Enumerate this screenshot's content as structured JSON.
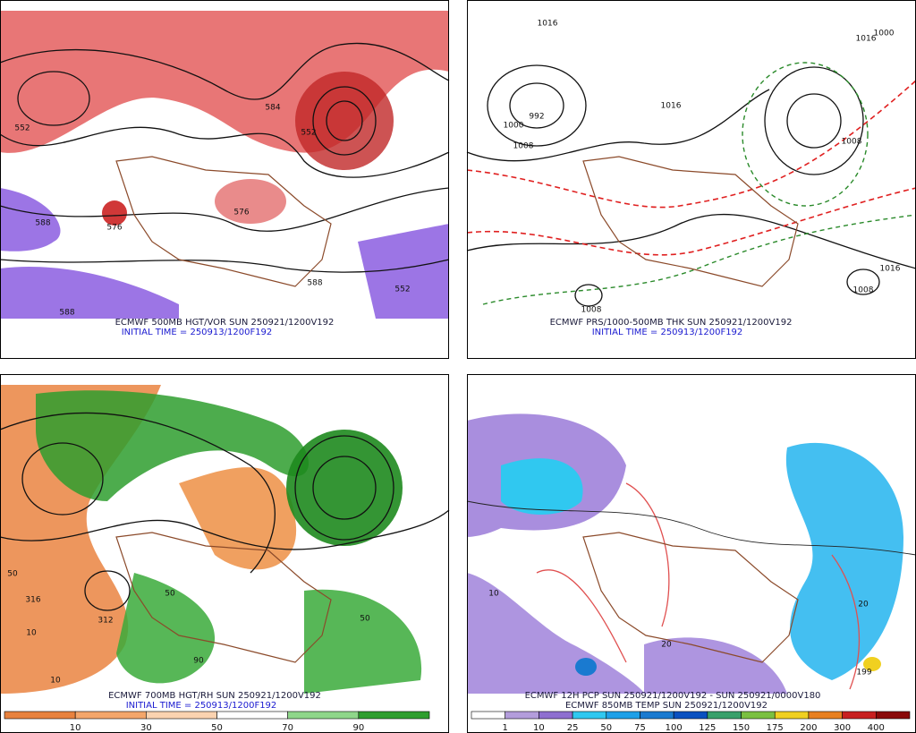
{
  "panels": [
    {
      "caption_lines": [
        "ECMWF 500MB HGT/VOR SUN 250921/1200V192",
        "INITIAL TIME = 250913/1200F192"
      ],
      "contour_labels": [
        "552",
        "584",
        "552",
        "576",
        "576",
        "588",
        "588",
        "588",
        "552"
      ]
    },
    {
      "caption_lines": [
        "ECMWF PRS/1000-500MB THK SUN 250921/1200V192",
        "INITIAL TIME = 250913/1200F192"
      ],
      "contour_labels": [
        "1016",
        "992",
        "1000",
        "1008",
        "1016",
        "1016",
        "1008",
        "1008",
        "1016",
        "1008",
        "1000"
      ]
    },
    {
      "caption_lines": [
        "ECMWF 700MB HGT/RH SUN 250921/1200V192",
        "INITIAL TIME = 250913/1200F192"
      ],
      "contour_labels": [
        "316",
        "312",
        "50",
        "10",
        "50",
        "90",
        "10",
        "50"
      ],
      "colorbar": {
        "labels": [
          10,
          30,
          50,
          70,
          90
        ],
        "colors": [
          "#e8823e",
          "#f4a66a",
          "#fbd3b0",
          "#ffffff",
          "#8fd68a",
          "#2e9e2e"
        ]
      }
    },
    {
      "caption_lines": [
        "ECMWF 12H PCP SUN 250921/1200V192 - SUN 250921/0000V180",
        "ECMWF 850MB TEMP SUN 250921/1200V192"
      ],
      "contour_labels": [
        "199",
        "10",
        "20",
        "20"
      ],
      "colorbar": {
        "labels": [
          1,
          10,
          25,
          50,
          75,
          100,
          125,
          150,
          175,
          200,
          300,
          400
        ],
        "colors": [
          "#ffffff",
          "#b39ddb",
          "#8e6fd0",
          "#30c8f0",
          "#1ea0e8",
          "#1a7ad0",
          "#0a50c0",
          "#3aa06a",
          "#7ac040",
          "#f0d020",
          "#e88020",
          "#c82020",
          "#8a0a0a"
        ]
      }
    }
  ]
}
